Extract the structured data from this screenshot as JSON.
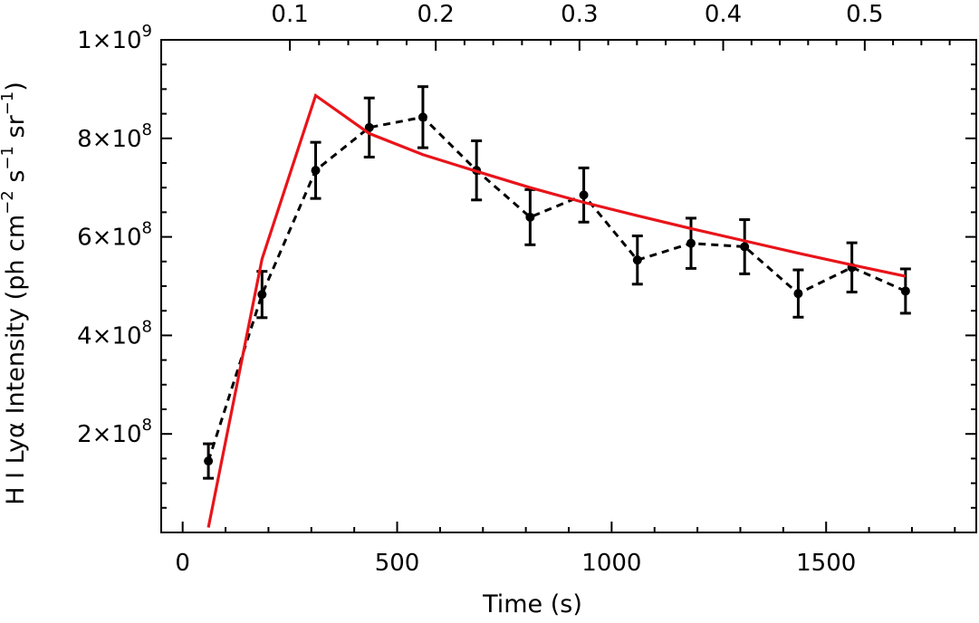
{
  "chart_data": {
    "type": "line",
    "xlabel": "Time (s)",
    "ylabel_parts": [
      "H I Ly",
      "α",
      " Intensity (ph cm",
      "−2",
      " s",
      "−1",
      " sr",
      "−1",
      ")"
    ],
    "xlim": [
      -50,
      1850
    ],
    "ylim": [
      0,
      1000000000
    ],
    "x_ticks": [
      0,
      500,
      1000,
      1500
    ],
    "x_tick_labels": [
      "0",
      "500",
      "1000",
      "1500"
    ],
    "y_ticks": [
      200000000,
      400000000,
      600000000,
      800000000,
      1000000000
    ],
    "y_tick_labels": [
      {
        "mant": "2×10",
        "exp": "8"
      },
      {
        "mant": "4×10",
        "exp": "8"
      },
      {
        "mant": "6×10",
        "exp": "8"
      },
      {
        "mant": "8×10",
        "exp": "8"
      },
      {
        "mant": "1×10",
        "exp": "9"
      }
    ],
    "top_axis": {
      "tick_labels": [
        "0.1",
        "0.2",
        "0.3",
        "0.4",
        "0.5"
      ],
      "tick_at_x": [
        250,
        590,
        925,
        1260,
        1590
      ]
    },
    "series": [
      {
        "style": "dashed",
        "color": "#000000",
        "marker": "circle",
        "x": [
          60,
          185,
          310,
          435,
          560,
          685,
          810,
          935,
          1060,
          1185,
          1310,
          1435,
          1560,
          1685
        ],
        "y": [
          145000000,
          483000000,
          735000000,
          822000000,
          843000000,
          735000000,
          640000000,
          685000000,
          553000000,
          587000000,
          580000000,
          485000000,
          538000000,
          490000000
        ],
        "yerr": [
          35000000,
          47000000,
          57000000,
          60000000,
          62000000,
          60000000,
          56000000,
          55000000,
          49000000,
          51000000,
          55000000,
          48000000,
          50000000,
          45000000
        ]
      },
      {
        "style": "solid",
        "color": "#e8141a",
        "x": [
          60,
          185,
          310,
          435,
          560,
          685,
          810,
          935,
          1060,
          1185,
          1310,
          1435,
          1560,
          1685
        ],
        "y": [
          10000000,
          555000000,
          887000000,
          810000000,
          767000000,
          733000000,
          700000000,
          670000000,
          643000000,
          617000000,
          592000000,
          567000000,
          543000000,
          520000000
        ]
      }
    ]
  }
}
